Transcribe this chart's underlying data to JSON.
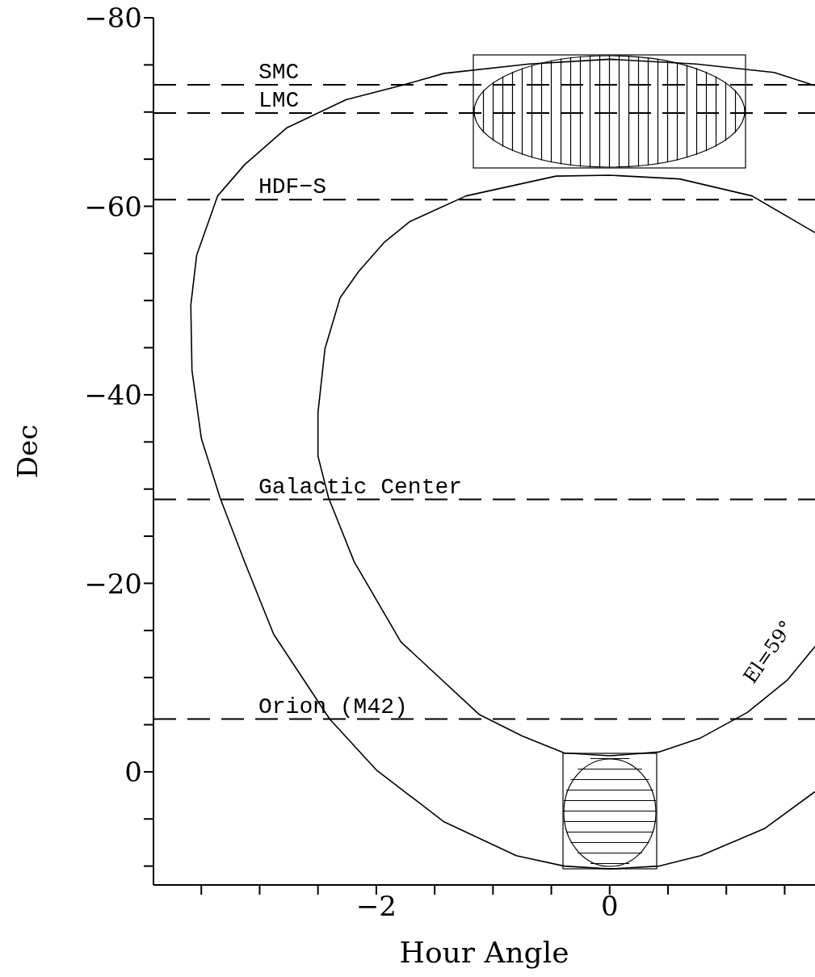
{
  "chart_data": {
    "type": "line",
    "xlabel": "Hour Angle",
    "ylabel": "Dec",
    "xlim": [
      -3.91,
      1.76
    ],
    "ylim": [
      12,
      -80
    ],
    "xticks": [
      {
        "value": -3.5,
        "label": null
      },
      {
        "value": -3,
        "label": null
      },
      {
        "value": -2.5,
        "label": null
      },
      {
        "value": -2,
        "label": "−2"
      },
      {
        "value": -1.5,
        "label": null
      },
      {
        "value": -1,
        "label": null
      },
      {
        "value": -0.5,
        "label": null
      },
      {
        "value": 0,
        "label": "0"
      },
      {
        "value": 0.5,
        "label": null
      },
      {
        "value": 1,
        "label": null
      },
      {
        "value": 1.5,
        "label": null
      }
    ],
    "yticks": [
      {
        "value": 10,
        "label": null
      },
      {
        "value": 5,
        "label": null
      },
      0,
      {
        "value": -5,
        "label": null
      },
      {
        "value": -10,
        "label": null
      },
      {
        "value": -15,
        "label": null
      },
      {
        "value": -20,
        "label": "−20"
      },
      {
        "value": -25,
        "label": null
      },
      {
        "value": -30,
        "label": null
      },
      {
        "value": -35,
        "label": null
      },
      {
        "value": -40,
        "label": "−40"
      },
      {
        "value": -45,
        "label": null
      },
      {
        "value": -50,
        "label": null
      },
      {
        "value": -55,
        "label": null
      },
      {
        "value": -60,
        "label": "−60"
      },
      {
        "value": -65,
        "label": null
      },
      {
        "value": -70,
        "label": null
      },
      {
        "value": -75,
        "label": null
      },
      {
        "value": -80,
        "label": "−80"
      }
    ],
    "grid": false,
    "marker": "none",
    "series": [
      {
        "color": "#000000",
        "x": [
          1.76,
          1.41,
          0.74,
          0,
          -0.69,
          -1.42,
          -1.79,
          -2.26,
          -2.77,
          -3.13,
          -3.36,
          -3.54,
          -3.59,
          -3.58,
          -3.5,
          -3.34,
          -3.13,
          -2.88,
          -2.4,
          -2,
          -1.42,
          -0.8,
          -0.39,
          0,
          0.42,
          0.78,
          1.33,
          1.76
        ],
        "values": [
          -72.8,
          -74.2,
          -75.1,
          -75.6,
          -75.1,
          -74.1,
          -72.8,
          -71.3,
          -68.3,
          -64.4,
          -61.1,
          -54.8,
          -49.5,
          -42.6,
          -35.4,
          -29.1,
          -22.3,
          -14.6,
          -5.6,
          -0.2,
          5.3,
          8.9,
          10,
          10.3,
          10,
          8.9,
          6,
          2.1
        ]
      },
      {
        "color": "#000000",
        "x": [
          1.76,
          1.22,
          0.6,
          0,
          -0.46,
          -1.23,
          -1.71,
          -1.93,
          -2.15,
          -2.31,
          -2.44,
          -2.5,
          -2.5,
          -2.41,
          -2.19,
          -1.79,
          -1.12,
          -0.75,
          -0.39,
          0,
          0.42,
          0.78,
          1.18,
          1.52,
          1.76
        ],
        "values": [
          -57.2,
          -61.1,
          -62.9,
          -63.3,
          -63.2,
          -61.1,
          -58.4,
          -56.2,
          -53.1,
          -50.3,
          -44.9,
          -38.1,
          -33.5,
          -29.1,
          -22.3,
          -13.8,
          -6.1,
          -3.8,
          -2,
          -1.7,
          -2.1,
          -3.6,
          -6.3,
          -9.7,
          -13.3
        ]
      }
    ],
    "ref_lines": [
      {
        "axis": "y",
        "value": -72.9,
        "label": "SMC",
        "line_style": "dashed",
        "color": "#000000"
      },
      {
        "axis": "y",
        "value": -69.9,
        "label": "LMC",
        "line_style": "dashed",
        "color": "#000000"
      },
      {
        "axis": "y",
        "value": -60.7,
        "label": "HDF−S",
        "line_style": "dashed",
        "color": "#000000"
      },
      {
        "axis": "y",
        "value": -28.9,
        "label": "Galactic Center",
        "line_style": "dashed",
        "color": "#000000"
      },
      {
        "axis": "y",
        "value": -5.6,
        "label": "Orion (M42)",
        "line_style": "dashed",
        "color": "#000000"
      }
    ],
    "annotations": [
      "El=59°"
    ]
  }
}
